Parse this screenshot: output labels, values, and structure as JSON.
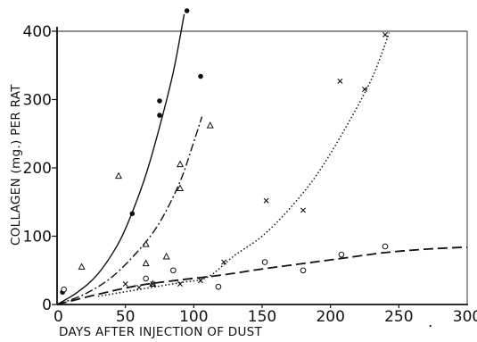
{
  "chart_data": {
    "type": "scatter",
    "title": "",
    "xlabel": "DAYS AFTER INJECTION OF DUST",
    "ylabel": "COLLAGEN (mg.) PER RAT",
    "xlim": [
      0,
      300
    ],
    "ylim": [
      0,
      400
    ],
    "x_ticks": [
      "0",
      "50",
      "100",
      "150",
      "200",
      "250",
      "300"
    ],
    "y_ticks": [
      "0",
      "100",
      "200",
      "300",
      "400"
    ],
    "grid": "top and right border lines only",
    "legend": "none",
    "series": [
      {
        "marker": "filled-circle",
        "line_style": "solid",
        "points": [
          [
            4,
            18
          ],
          [
            55,
            133
          ],
          [
            75,
            298
          ],
          [
            75,
            277
          ],
          [
            95,
            430
          ],
          [
            105,
            334
          ]
        ],
        "curve": [
          [
            0,
            0
          ],
          [
            15,
            18
          ],
          [
            30,
            45
          ],
          [
            45,
            90
          ],
          [
            55,
            135
          ],
          [
            65,
            190
          ],
          [
            75,
            260
          ],
          [
            85,
            340
          ],
          [
            93,
            425
          ]
        ]
      },
      {
        "marker": "open-triangle",
        "line_style": "dash-dot",
        "points": [
          [
            18,
            55
          ],
          [
            45,
            188
          ],
          [
            65,
            88
          ],
          [
            65,
            60
          ],
          [
            70,
            30
          ],
          [
            80,
            70
          ],
          [
            90,
            205
          ],
          [
            90,
            170
          ],
          [
            112,
            262
          ]
        ],
        "curve": [
          [
            0,
            0
          ],
          [
            20,
            15
          ],
          [
            40,
            40
          ],
          [
            60,
            80
          ],
          [
            75,
            120
          ],
          [
            90,
            180
          ],
          [
            100,
            238
          ],
          [
            106,
            275
          ]
        ]
      },
      {
        "marker": "cross",
        "line_style": "dotted",
        "points": [
          [
            50,
            30
          ],
          [
            60,
            25
          ],
          [
            70,
            30
          ],
          [
            90,
            30
          ],
          [
            105,
            35
          ],
          [
            122,
            62
          ],
          [
            153,
            152
          ],
          [
            180,
            138
          ],
          [
            207,
            327
          ],
          [
            225,
            315
          ],
          [
            240,
            395
          ]
        ],
        "curve": [
          [
            30,
            12
          ],
          [
            60,
            22
          ],
          [
            90,
            32
          ],
          [
            110,
            40
          ],
          [
            130,
            72
          ],
          [
            150,
            100
          ],
          [
            170,
            140
          ],
          [
            190,
            190
          ],
          [
            210,
            255
          ],
          [
            230,
            330
          ],
          [
            243,
            398
          ]
        ]
      },
      {
        "marker": "open-circle",
        "line_style": "dashed",
        "points": [
          [
            5,
            22
          ],
          [
            65,
            38
          ],
          [
            85,
            50
          ],
          [
            118,
            26
          ],
          [
            152,
            62
          ],
          [
            180,
            50
          ],
          [
            208,
            73
          ],
          [
            240,
            85
          ]
        ],
        "curve": [
          [
            0,
            0
          ],
          [
            30,
            15
          ],
          [
            60,
            28
          ],
          [
            90,
            36
          ],
          [
            120,
            43
          ],
          [
            150,
            52
          ],
          [
            180,
            60
          ],
          [
            210,
            68
          ],
          [
            240,
            76
          ],
          [
            270,
            81
          ],
          [
            300,
            84
          ]
        ]
      }
    ],
    "annotations": [
      "."
    ]
  }
}
